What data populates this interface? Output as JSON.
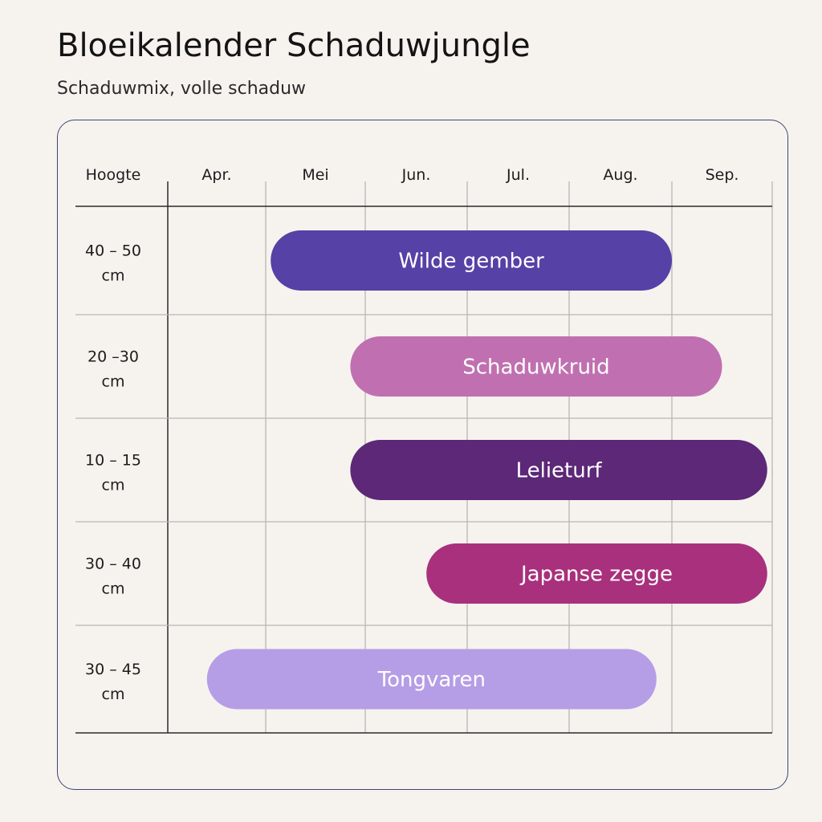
{
  "header": {
    "title": "Bloeikalender Schaduwjungle",
    "subtitle": "Schaduwmix, volle schaduw"
  },
  "chart_data": {
    "type": "gantt",
    "row_header": "Hoogte",
    "columns": [
      "Apr.",
      "Mei",
      "Jun.",
      "Jul.",
      "Aug.",
      "Sep."
    ],
    "x_range": [
      "begin april",
      "eind september"
    ],
    "rows": [
      {
        "height_label": [
          "40 – 50",
          "cm"
        ],
        "plant": "Wilde gember",
        "start": 1.05,
        "end": 5.0,
        "color": "#5641a6"
      },
      {
        "height_label": [
          "20 –30",
          "cm"
        ],
        "plant": "Schaduwkruid",
        "start": 1.85,
        "end": 5.5,
        "color": "#c070b0"
      },
      {
        "height_label": [
          "10 – 15",
          "cm"
        ],
        "plant": "Lelieturf",
        "start": 1.85,
        "end": 5.95,
        "color": "#5d2878"
      },
      {
        "height_label": [
          "30 – 40",
          "cm"
        ],
        "plant": "Japanse zegge",
        "start": 2.6,
        "end": 5.95,
        "color": "#a8307c"
      },
      {
        "height_label": [
          "30 – 45",
          "cm"
        ],
        "plant": "Tongvaren",
        "start": 0.4,
        "end": 4.85,
        "color": "#b59ee6"
      }
    ],
    "grid": true,
    "legend": "none"
  }
}
